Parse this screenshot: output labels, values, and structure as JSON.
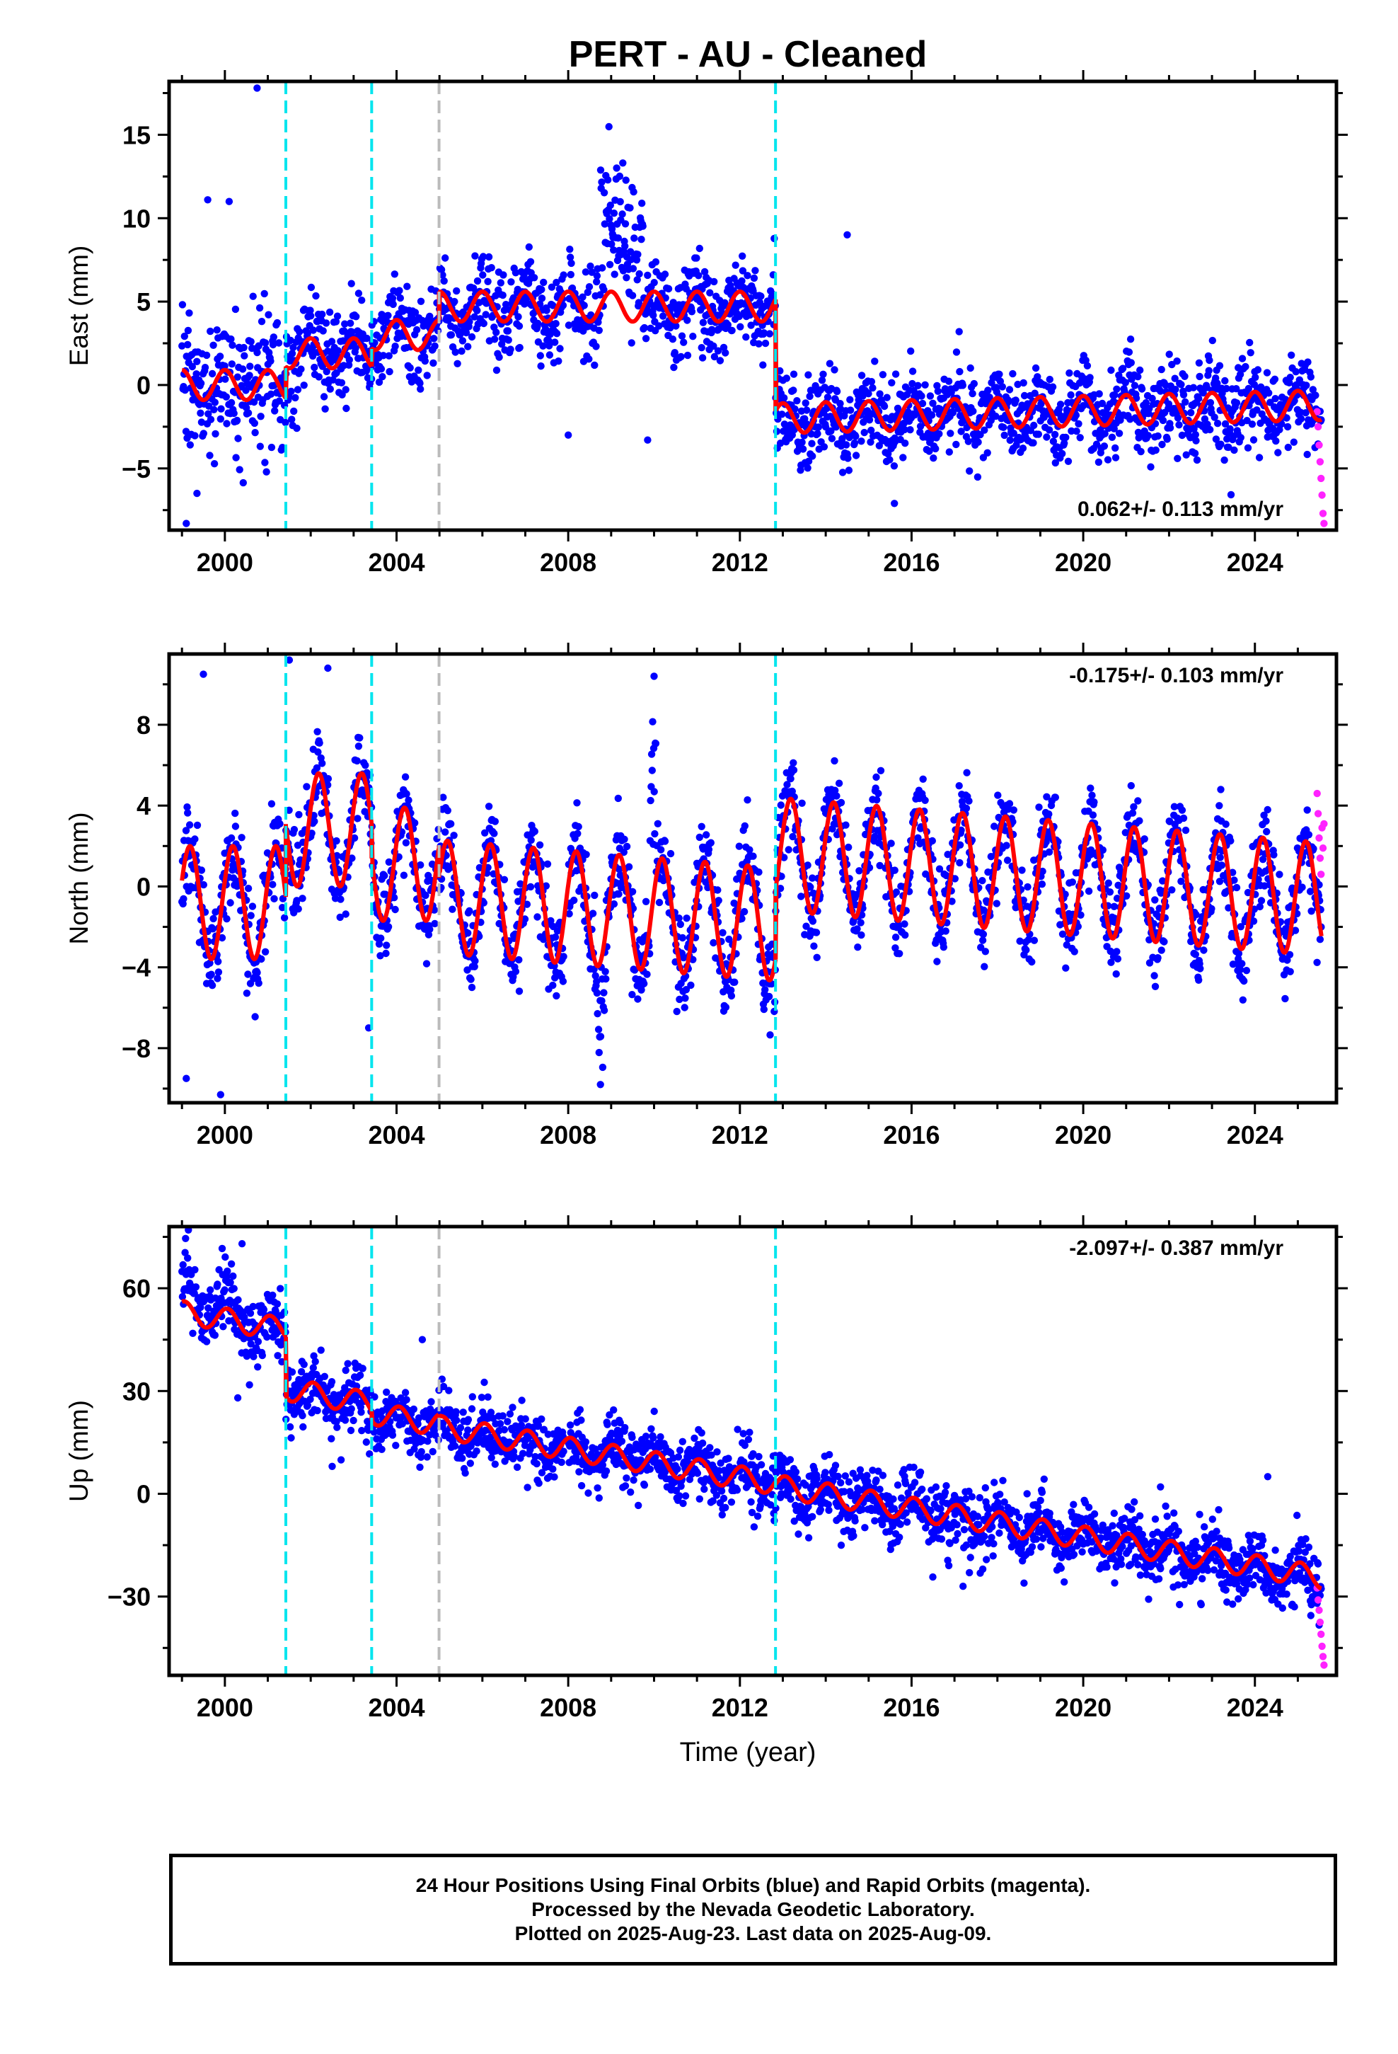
{
  "title": "PERT  - AU - Cleaned",
  "xlabel": "Time (year)",
  "colors": {
    "final_orbits": "#0000ff",
    "rapid_orbits": "#ff22ff",
    "model_fit": "#ff0000",
    "equipment_change": "#00e5ee",
    "other_change": "#bbbbbb",
    "frame": "#000000"
  },
  "footer": {
    "line1": "24 Hour Positions Using Final Orbits (blue) and Rapid Orbits (magenta).",
    "line2": "Processed by the Nevada Geodetic Laboratory.",
    "line3": "Plotted on 2025-Aug-23. Last data on 2025-Aug-09."
  },
  "chart_data": [
    {
      "type": "scatter",
      "component": "East",
      "ylabel": "East (mm)",
      "xlim": [
        1998.7,
        2025.9
      ],
      "ylim": [
        -8.7,
        18.2
      ],
      "xticks": [
        2000,
        2004,
        2008,
        2012,
        2016,
        2020,
        2024
      ],
      "yticks": [
        -5,
        0,
        5,
        10,
        15
      ],
      "velocity": "0.062+/- 0.113 mm/yr",
      "velocity_position": "bottom-right",
      "breaks_cyan": [
        2001.42,
        2003.42,
        2012.83
      ],
      "breaks_gray": [
        2004.99
      ],
      "model_segments": [
        {
          "x0": 1999.0,
          "x1": 2001.42,
          "offset": 0.0,
          "trend": 0.0,
          "amplitude": 0.9,
          "phase": 1.57
        },
        {
          "x0": 2001.42,
          "x1": 2003.42,
          "offset": 1.9,
          "trend": 0.0,
          "amplitude": 0.9,
          "phase": 1.57
        },
        {
          "x0": 2003.42,
          "x1": 2004.99,
          "offset": 3.0,
          "trend": 0.0,
          "amplitude": 0.9,
          "phase": 1.57
        },
        {
          "x0": 2004.99,
          "x1": 2012.83,
          "offset": 4.7,
          "trend": 0.0,
          "amplitude": 0.9,
          "phase": 1.57
        },
        {
          "x0": 2012.83,
          "x1": 2025.55,
          "offset": -2.0,
          "trend": 0.062,
          "amplitude": 0.9,
          "phase": 1.57
        }
      ],
      "noise_sd": 1.3,
      "excursions": [
        {
          "x0": 2008.75,
          "x1": 2009.75,
          "shift": 5.5,
          "noise_sd": 2.0
        },
        {
          "x0": 1999.0,
          "x1": 2001.2,
          "shift": 0.0,
          "noise_sd": 2.1
        }
      ],
      "outliers": [
        {
          "x": 2000.75,
          "y": 17.8
        },
        {
          "x": 1999.6,
          "y": 11.1
        },
        {
          "x": 2000.1,
          "y": 11.0
        },
        {
          "x": 1999.1,
          "y": -8.3
        },
        {
          "x": 2014.5,
          "y": 9.0
        },
        {
          "x": 2008.0,
          "y": -3.0
        },
        {
          "x": 2009.85,
          "y": -3.3
        },
        {
          "x": 1999.35,
          "y": -6.5
        },
        {
          "x": 2015.6,
          "y": -7.1
        }
      ],
      "rapid": {
        "x0": 2025.45,
        "x1": 2025.61,
        "y_values": [
          -1.6,
          -2.5,
          -3.6,
          -4.6,
          -5.6,
          -6.6,
          -7.7,
          -8.3
        ]
      }
    },
    {
      "type": "scatter",
      "component": "North",
      "ylabel": "North (mm)",
      "xlim": [
        1998.7,
        2025.9
      ],
      "ylim": [
        -10.7,
        11.5
      ],
      "xticks": [
        2000,
        2004,
        2008,
        2012,
        2016,
        2020,
        2024
      ],
      "yticks": [
        -8,
        -4,
        0,
        4,
        8
      ],
      "velocity": "-0.175+/- 0.103 mm/yr",
      "velocity_position": "top-right",
      "breaks_cyan": [
        2001.42,
        2003.42,
        2012.83
      ],
      "breaks_gray": [
        2004.99
      ],
      "model_segments": [
        {
          "x0": 1999.0,
          "x1": 2001.42,
          "offset": -0.8,
          "trend": 0.0,
          "amplitude": 2.8,
          "phase": 0.4
        },
        {
          "x0": 2001.42,
          "x1": 2003.42,
          "offset": 2.8,
          "trend": 0.0,
          "amplitude": 2.8,
          "phase": 0.4
        },
        {
          "x0": 2003.42,
          "x1": 2004.99,
          "offset": 1.1,
          "trend": 0.0,
          "amplitude": 2.8,
          "phase": 0.4
        },
        {
          "x0": 2004.99,
          "x1": 2012.83,
          "offset": -0.5,
          "trend": -0.175,
          "amplitude": 2.8,
          "phase": 0.4
        },
        {
          "x0": 2012.83,
          "x1": 2025.55,
          "offset": 1.6,
          "trend": -0.175,
          "amplitude": 2.8,
          "phase": 0.4
        }
      ],
      "noise_sd": 1.1,
      "excursions": [
        {
          "x0": 2009.9,
          "x1": 2010.05,
          "shift": 7.5,
          "noise_sd": 1.2
        },
        {
          "x0": 2008.6,
          "x1": 2008.9,
          "shift": -3.0,
          "noise_sd": 2.2
        }
      ],
      "outliers": [
        {
          "x": 2001.5,
          "y": 11.2
        },
        {
          "x": 1999.5,
          "y": 10.5
        },
        {
          "x": 2010.0,
          "y": 10.4
        },
        {
          "x": 1999.1,
          "y": -9.5
        },
        {
          "x": 1999.9,
          "y": -10.3
        },
        {
          "x": 2003.35,
          "y": -7.0
        },
        {
          "x": 2002.4,
          "y": 10.8
        },
        {
          "x": 2008.75,
          "y": -9.8
        }
      ],
      "rapid": {
        "x0": 2025.45,
        "x1": 2025.61,
        "y_values": [
          4.6,
          3.6,
          2.4,
          1.4,
          0.6,
          2.9,
          1.9,
          3.1
        ]
      }
    },
    {
      "type": "scatter",
      "component": "Up",
      "ylabel": "Up (mm)",
      "xlim": [
        1998.7,
        2025.9
      ],
      "ylim": [
        -53,
        78
      ],
      "xticks": [
        2000,
        2004,
        2008,
        2012,
        2016,
        2020,
        2024
      ],
      "yticks": [
        -30,
        0,
        30,
        60
      ],
      "velocity": "-2.097+/- 0.387 mm/yr",
      "velocity_position": "top-right",
      "breaks_cyan": [
        2001.42,
        2003.42,
        2012.83
      ],
      "breaks_gray": [
        2004.99
      ],
      "model_segments": [
        {
          "x0": 1999.0,
          "x1": 2001.42,
          "offset": 53.0,
          "trend": -2.097,
          "amplitude": 3.3,
          "phase": 1.2
        },
        {
          "x0": 2001.42,
          "x1": 2003.42,
          "offset": 30.5,
          "trend": -2.097,
          "amplitude": 3.3,
          "phase": 1.2
        },
        {
          "x0": 2003.42,
          "x1": 2004.99,
          "offset": 23.5,
          "trend": -2.097,
          "amplitude": 3.3,
          "phase": 1.2
        },
        {
          "x0": 2004.99,
          "x1": 2012.83,
          "offset": 19.5,
          "trend": -2.097,
          "amplitude": 3.3,
          "phase": 1.2
        },
        {
          "x0": 2012.83,
          "x1": 2025.55,
          "offset": 2.3,
          "trend": -2.097,
          "amplitude": 3.3,
          "phase": 1.2
        }
      ],
      "noise_sd": 4.6,
      "excursions": [
        {
          "x0": 1999.0,
          "x1": 2000.2,
          "shift": 7.0,
          "noise_sd": 5.0
        }
      ],
      "outliers": [
        {
          "x": 1999.15,
          "y": 77.0
        },
        {
          "x": 2000.4,
          "y": 73.0
        },
        {
          "x": 2002.5,
          "y": 8.0
        },
        {
          "x": 2004.6,
          "y": 45.0
        },
        {
          "x": 2000.3,
          "y": 28.0
        },
        {
          "x": 2017.2,
          "y": -27.0
        },
        {
          "x": 2021.8,
          "y": 2.0
        },
        {
          "x": 2024.3,
          "y": 5.0
        }
      ],
      "rapid": {
        "x0": 2025.45,
        "x1": 2025.61,
        "y_values": [
          -27.5,
          -31.0,
          -34.0,
          -37.5,
          -41.0,
          -44.5,
          -47.5,
          -50.0
        ]
      }
    }
  ]
}
